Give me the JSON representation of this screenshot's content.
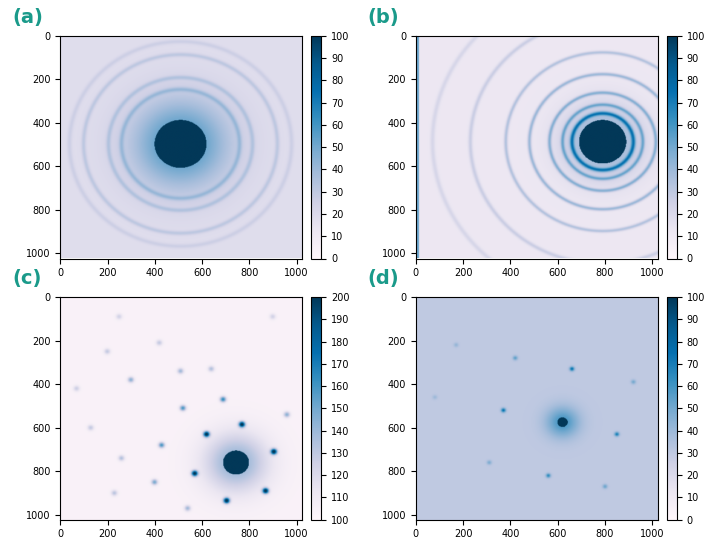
{
  "chart_data": [
    {
      "type": "heatmap",
      "label": "(a)",
      "color": "PuBu",
      "xlim": [
        0,
        1024
      ],
      "ylim": [
        1024,
        0
      ],
      "xticks": [
        0,
        200,
        400,
        600,
        800,
        1000
      ],
      "yticks": [
        0,
        200,
        400,
        600,
        800,
        1000
      ],
      "colorbar": {
        "range": [
          0,
          100
        ],
        "ticks": [
          0,
          10,
          20,
          30,
          40,
          50,
          60,
          70,
          80,
          90,
          100
        ]
      },
      "image": {
        "background": 18,
        "center": [
          510,
          500
        ],
        "beam_radius": 110,
        "beam_value": 100,
        "halo": {
          "radius": 200,
          "value": 45
        },
        "rings": [
          {
            "radius": 250,
            "value": 14,
            "width": 10
          },
          {
            "radius": 305,
            "value": 12,
            "width": 10
          },
          {
            "radius": 410,
            "value": 12,
            "width": 10
          },
          {
            "radius": 470,
            "value": 8,
            "width": 10
          }
        ],
        "spot_radius": 12,
        "spots": []
      }
    },
    {
      "type": "heatmap",
      "label": "(b)",
      "color": "PuBu",
      "xlim": [
        0,
        1024
      ],
      "ylim": [
        1024,
        0
      ],
      "xticks": [
        0,
        200,
        400,
        600,
        800,
        1000
      ],
      "yticks": [
        0,
        200,
        400,
        600,
        800,
        1000
      ],
      "colorbar": {
        "range": [
          0,
          100
        ],
        "ticks": [
          0,
          10,
          20,
          30,
          40,
          50,
          60,
          70,
          80,
          90,
          100
        ]
      },
      "image": {
        "background": 12,
        "center": [
          790,
          490
        ],
        "beam_radius": 100,
        "beam_value": 100,
        "halo": {
          "radius": 150,
          "value": 40
        },
        "rings": [
          {
            "radius": 130,
            "value": 45,
            "width": 9
          },
          {
            "radius": 170,
            "value": 30,
            "width": 8
          },
          {
            "radius": 225,
            "value": 30,
            "width": 8
          },
          {
            "radius": 310,
            "value": 28,
            "width": 8
          },
          {
            "radius": 410,
            "value": 22,
            "width": 8
          },
          {
            "radius": 560,
            "value": 15,
            "width": 9
          },
          {
            "radius": 720,
            "value": 10,
            "width": 10
          }
        ],
        "spot_radius": 12,
        "spots": [],
        "edge_stripe": {
          "x_max": 12,
          "value": 40
        }
      }
    },
    {
      "type": "heatmap",
      "label": "(c)",
      "color": "PuBu",
      "xlim": [
        0,
        1024
      ],
      "ylim": [
        1024,
        0
      ],
      "xticks": [
        0,
        200,
        400,
        600,
        800,
        1000
      ],
      "yticks": [
        0,
        200,
        400,
        600,
        800,
        1000
      ],
      "colorbar": {
        "range": [
          100,
          200
        ],
        "ticks": [
          100,
          110,
          120,
          130,
          140,
          150,
          160,
          170,
          180,
          190,
          200
        ]
      },
      "image": {
        "background": 104,
        "center": [
          745,
          760
        ],
        "beam_radius": 55,
        "beam_value": 200,
        "halo": {
          "radius": 130,
          "value": 40
        },
        "rings": [],
        "spot_radius": 13,
        "spots": [
          {
            "x": 620,
            "y": 630,
            "value": 100
          },
          {
            "x": 770,
            "y": 585,
            "value": 100
          },
          {
            "x": 905,
            "y": 710,
            "value": 100
          },
          {
            "x": 870,
            "y": 890,
            "value": 100
          },
          {
            "x": 705,
            "y": 935,
            "value": 100
          },
          {
            "x": 570,
            "y": 810,
            "value": 100
          },
          {
            "x": 690,
            "y": 470,
            "value": 60
          },
          {
            "x": 520,
            "y": 510,
            "value": 55
          },
          {
            "x": 430,
            "y": 680,
            "value": 55
          },
          {
            "x": 400,
            "y": 850,
            "value": 45
          },
          {
            "x": 960,
            "y": 540,
            "value": 40
          },
          {
            "x": 540,
            "y": 970,
            "value": 35
          },
          {
            "x": 300,
            "y": 380,
            "value": 40
          },
          {
            "x": 510,
            "y": 340,
            "value": 35
          },
          {
            "x": 640,
            "y": 330,
            "value": 30
          },
          {
            "x": 260,
            "y": 740,
            "value": 30
          },
          {
            "x": 230,
            "y": 900,
            "value": 28
          },
          {
            "x": 130,
            "y": 600,
            "value": 25
          },
          {
            "x": 200,
            "y": 250,
            "value": 25
          },
          {
            "x": 420,
            "y": 210,
            "value": 25
          },
          {
            "x": 250,
            "y": 90,
            "value": 20
          },
          {
            "x": 900,
            "y": 90,
            "value": 20
          },
          {
            "x": 70,
            "y": 420,
            "value": 22
          }
        ]
      }
    },
    {
      "type": "heatmap",
      "label": "(d)",
      "color": "PuBu",
      "xlim": [
        0,
        1024
      ],
      "ylim": [
        1024,
        0
      ],
      "xticks": [
        0,
        200,
        400,
        600,
        800,
        1000
      ],
      "yticks": [
        0,
        200,
        400,
        600,
        800,
        1000
      ],
      "colorbar": {
        "range": [
          0,
          100
        ],
        "ticks": [
          0,
          10,
          20,
          30,
          40,
          50,
          60,
          70,
          80,
          90,
          100
        ]
      },
      "image": {
        "background": 30,
        "center": [
          620,
          575
        ],
        "beam_radius": 22,
        "beam_value": 100,
        "halo": {
          "radius": 70,
          "value": 30
        },
        "rings": [],
        "spot_radius": 10,
        "spots": [
          {
            "x": 660,
            "y": 330,
            "value": 45
          },
          {
            "x": 850,
            "y": 630,
            "value": 40
          },
          {
            "x": 370,
            "y": 520,
            "value": 45
          },
          {
            "x": 560,
            "y": 820,
            "value": 35
          },
          {
            "x": 420,
            "y": 280,
            "value": 25
          },
          {
            "x": 920,
            "y": 390,
            "value": 20
          },
          {
            "x": 800,
            "y": 870,
            "value": 22
          },
          {
            "x": 310,
            "y": 760,
            "value": 18
          },
          {
            "x": 170,
            "y": 220,
            "value": 12
          },
          {
            "x": 80,
            "y": 460,
            "value": 10
          }
        ]
      }
    }
  ]
}
